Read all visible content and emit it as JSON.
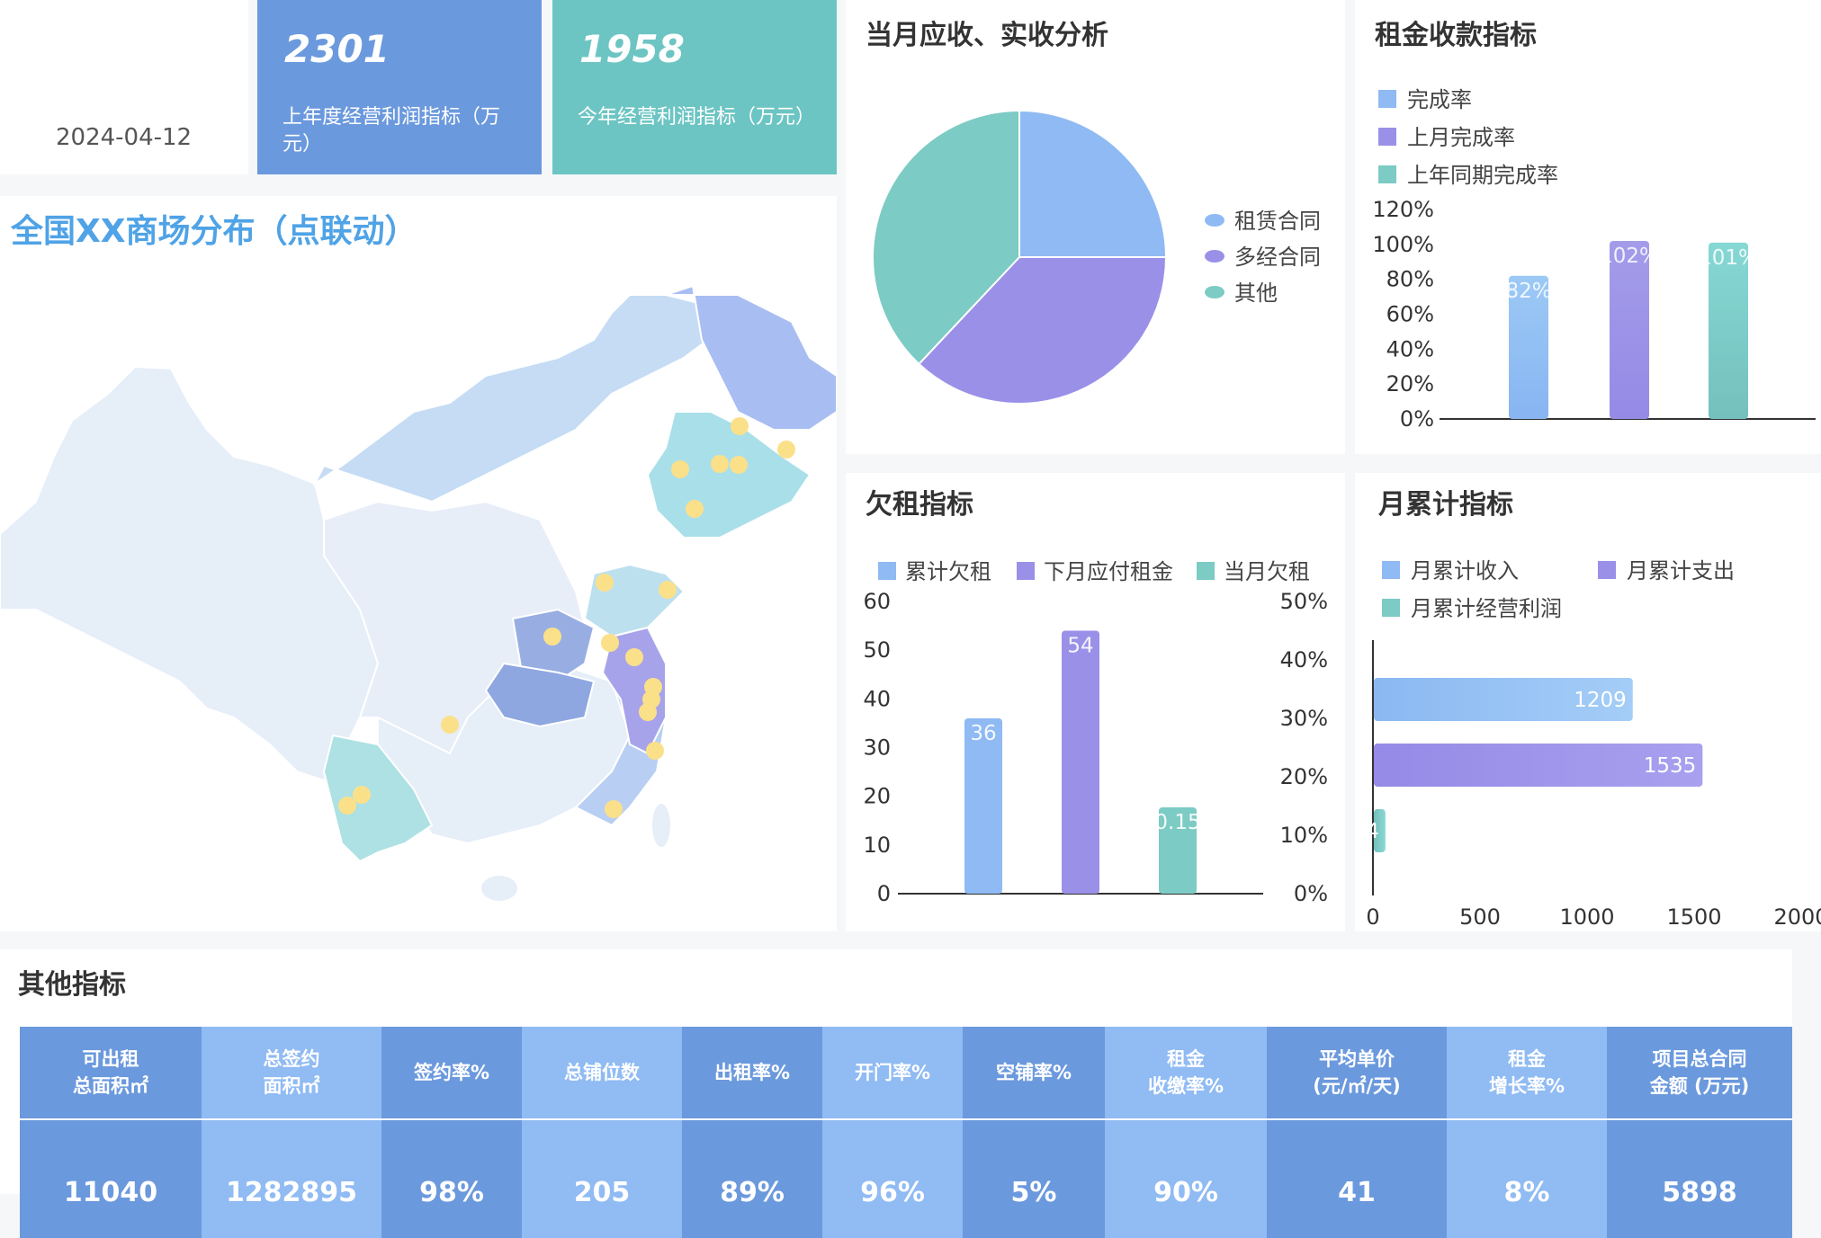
{
  "header": {
    "date": "2024-04-12",
    "kpi1": {
      "value": "2301",
      "label": "上年度经营利润指标（万元）",
      "color": "#6b99dd"
    },
    "kpi2": {
      "value": "1958",
      "label": "今年经营利润指标（万元）",
      "color": "#6cc5c3"
    }
  },
  "map": {
    "title": "全国XX商场分布（点联动）",
    "marker_color": "#fbe08a"
  },
  "colors": {
    "blue": "#8fbaf3",
    "purple": "#9a90e8",
    "teal": "#7ccbc4"
  },
  "charts": {
    "pie_title": "当月应收、实收分析",
    "rent_title": "租金收款指标",
    "arrears_title": "欠租指标",
    "monthly_title": "月累计指标"
  },
  "chart_data": [
    {
      "type": "pie",
      "title": "当月应收、实收分析",
      "categories": [
        "租赁合同",
        "多经合同",
        "其他"
      ],
      "values": [
        25,
        37,
        38
      ]
    },
    {
      "type": "bar",
      "title": "租金收款指标",
      "categories": [
        "完成率",
        "上月完成率",
        "上年同期完成率"
      ],
      "values": [
        82,
        102,
        101
      ],
      "value_labels": [
        "82%",
        "102%",
        "101%"
      ],
      "ylim": [
        0,
        120
      ],
      "yticks": [
        "120%",
        "100%",
        "80%",
        "60%",
        "40%",
        "20%",
        "0%"
      ],
      "legend_position": "top-left"
    },
    {
      "type": "bar",
      "title": "欠租指标",
      "categories": [
        "累计欠租",
        "下月应付租金",
        "当月欠租"
      ],
      "values": [
        36,
        54,
        0.15
      ],
      "value_labels": [
        "36",
        "54",
        "0.15"
      ],
      "ylim": [
        0,
        60
      ],
      "yticks_left": [
        "60",
        "50",
        "40",
        "30",
        "20",
        "10",
        "0"
      ],
      "yticks_right": [
        "50%",
        "40%",
        "30%",
        "20%",
        "10%",
        "0%"
      ],
      "legend_position": "top"
    },
    {
      "type": "bar",
      "orientation": "horizontal",
      "title": "月累计指标",
      "categories": [
        "月累计收入",
        "月累计支出",
        "月累计经营利润"
      ],
      "values": [
        1209,
        1535,
        54
      ],
      "value_labels": [
        "1209",
        "1535",
        "54"
      ],
      "xlim": [
        0,
        2000
      ],
      "xticks": [
        "0",
        "500",
        "1000",
        "1500",
        "2000"
      ],
      "legend_position": "top"
    },
    {
      "type": "table",
      "title": "其他指标",
      "columns": [
        "可出租\n总面积㎡",
        "总签约\n面积㎡",
        "签约率%",
        "总铺位数",
        "出租率%",
        "开门率%",
        "空铺率%",
        "租金\n收缴率%",
        "平均单价\n(元/㎡/天)",
        "租金\n增长率%",
        "项目总合同\n金额 (万元)"
      ],
      "values": [
        "11040",
        "1282895",
        "98%",
        "205",
        "89%",
        "96%",
        "5%",
        "90%",
        "41",
        "8%",
        "5898"
      ]
    }
  ]
}
